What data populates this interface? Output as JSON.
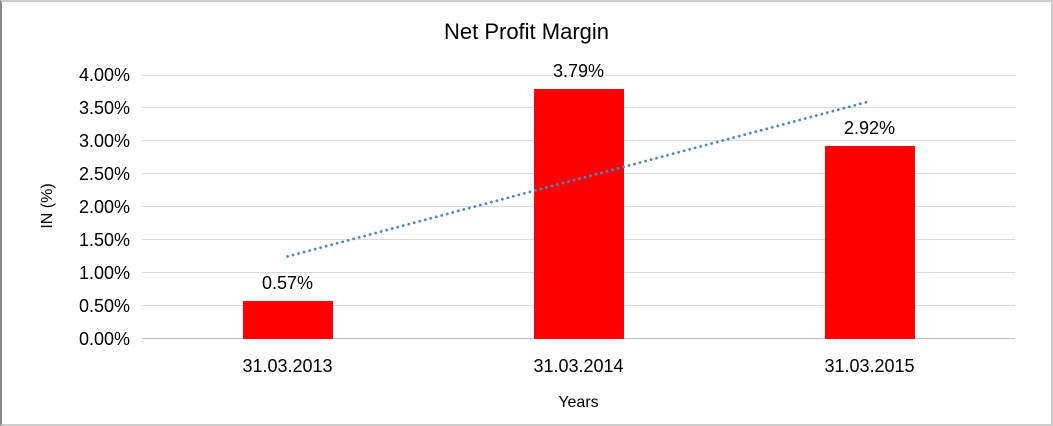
{
  "chart_data": {
    "type": "bar",
    "title": "Net Profit Margin",
    "categories": [
      "31.03.2013",
      "31.03.2014",
      "31.03.2015"
    ],
    "values": [
      0.57,
      3.79,
      2.92
    ],
    "data_labels": [
      "0.57%",
      "3.79%",
      "2.92%"
    ],
    "xlabel": "Years",
    "ylabel": "IN (%)",
    "ylim": [
      0,
      4
    ],
    "ytick_step": 0.5,
    "ytick_labels": [
      "0.00%",
      "0.50%",
      "1.00%",
      "1.50%",
      "2.00%",
      "2.50%",
      "3.00%",
      "3.50%",
      "4.00%"
    ],
    "grid": true,
    "legend": "none",
    "bar_color": "#FF0000",
    "gridline_color": "#D9D9D9",
    "axis_line_color": "#BFBFBF",
    "text_color": "#000000",
    "background_color": "#FFFFFF",
    "border_color": "#CDCDCD",
    "trendline": {
      "type": "linear",
      "style": "dotted",
      "color": "#4F86C6",
      "start_category_index": 0,
      "end_category_index": 2,
      "start_value": 1.25,
      "end_value": 3.6
    }
  }
}
